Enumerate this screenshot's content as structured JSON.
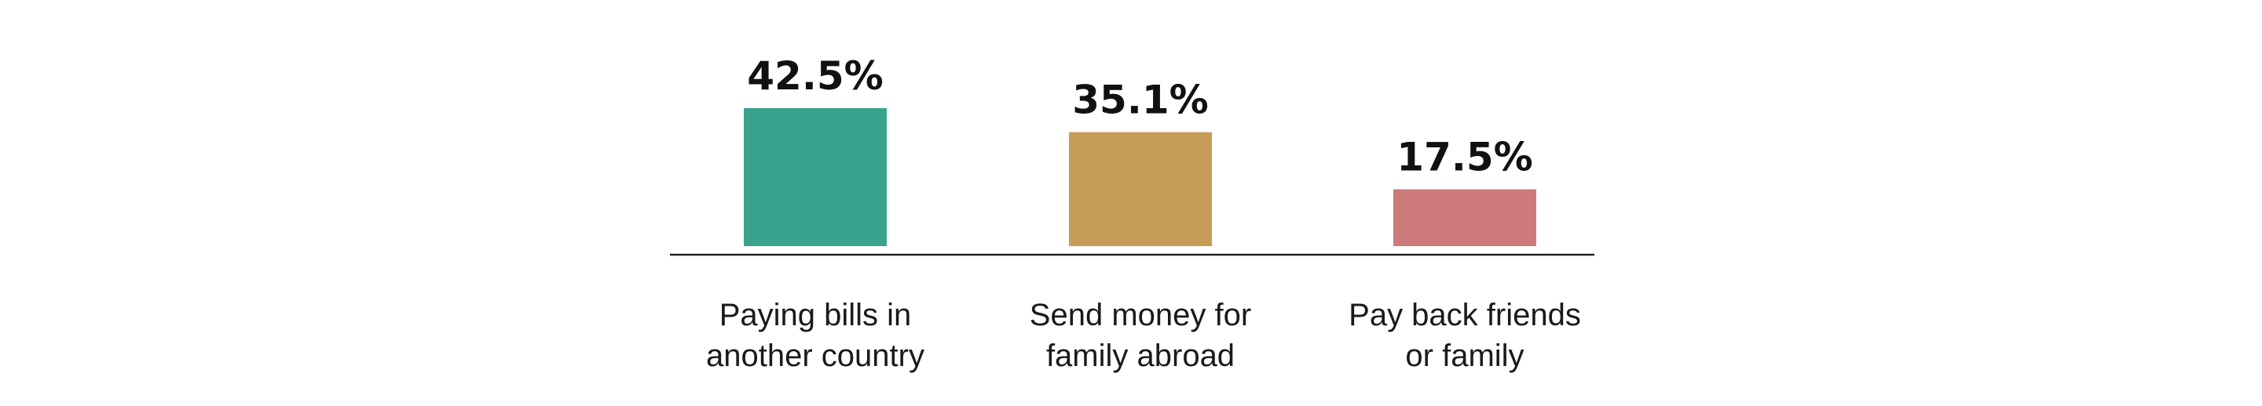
{
  "chart_data": {
    "type": "bar",
    "categories": [
      [
        "Paying bills in",
        "another country"
      ],
      [
        "Send money for",
        "family abroad"
      ],
      [
        "Pay back friends",
        "or family"
      ]
    ],
    "values": [
      42.5,
      35.1,
      17.5
    ],
    "value_labels": [
      "42.5%",
      "35.1%",
      "17.5%"
    ],
    "colors": [
      "#37a38c",
      "#c79c57",
      "#cc7a7a"
    ],
    "title": "",
    "xlabel": "",
    "ylabel": "",
    "ylim": [
      0,
      42.5
    ],
    "grid": false,
    "legend": "none"
  }
}
